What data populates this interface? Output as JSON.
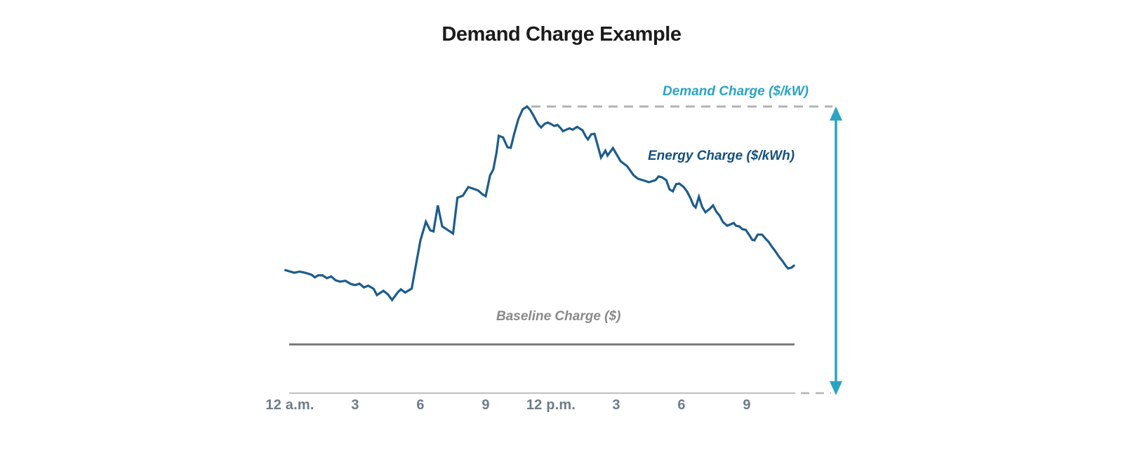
{
  "colors": {
    "title_text": "#1b1b1b",
    "accent_teal": "#2aa4c3",
    "curve_blue": "#1d5c8b",
    "energy_label_blue": "#15507c",
    "baseline_line_gray": "#7b7b7b",
    "baseline_label_gray": "#8a8a8a",
    "dash_gray": "#b3b3b3",
    "axis_gray": "#bfbfbf",
    "tick_text": "#6d7c88"
  },
  "chart_data": {
    "type": "line",
    "title": "Demand Charge Example",
    "x_unit": "hour of day (0 = 12 a.m., 12 = 12 p.m.)",
    "y_unit": "load as % of daily peak",
    "xlim": [
      0,
      23.2
    ],
    "ylim": [
      0,
      105
    ],
    "grid": false,
    "legend": false,
    "x_ticks": [
      {
        "label": "12 a.m.",
        "hour": 0
      },
      {
        "label": "3",
        "hour": 3
      },
      {
        "label": "6",
        "hour": 6
      },
      {
        "label": "9",
        "hour": 9
      },
      {
        "label": "12 p.m.",
        "hour": 12
      },
      {
        "label": "3",
        "hour": 15
      },
      {
        "label": "6",
        "hour": 18
      },
      {
        "label": "9",
        "hour": 21
      }
    ],
    "peak_hour": 10.9,
    "peak_level_pct": 100,
    "baseline_level_pct": 17,
    "annotations": {
      "demand": {
        "text": "Demand Charge ($/kW)",
        "style": "teal, dashed line at peak level with vertical double-headed arrow down to axis"
      },
      "energy": {
        "text": "Energy Charge ($/kWh)",
        "style": "dark blue, labels the load curve"
      },
      "baseline": {
        "text": "Baseline Charge ($)",
        "style": "gray, labels flat horizontal line"
      }
    },
    "series": [
      {
        "name": "load_pct_of_peak",
        "points": [
          [
            -0.25,
            43
          ],
          [
            0.2,
            42
          ],
          [
            0.45,
            42.4
          ],
          [
            0.7,
            42
          ],
          [
            1.0,
            41.3
          ],
          [
            1.15,
            40.4
          ],
          [
            1.3,
            41.1
          ],
          [
            1.5,
            41.1
          ],
          [
            1.7,
            40.1
          ],
          [
            1.9,
            40.7
          ],
          [
            2.1,
            39.4
          ],
          [
            2.3,
            38.9
          ],
          [
            2.55,
            39.2
          ],
          [
            2.8,
            38.1
          ],
          [
            3.0,
            37.7
          ],
          [
            3.2,
            38.2
          ],
          [
            3.4,
            36.9
          ],
          [
            3.6,
            37.5
          ],
          [
            3.85,
            36.4
          ],
          [
            4.0,
            34.2
          ],
          [
            4.3,
            35.7
          ],
          [
            4.5,
            34.5
          ],
          [
            4.7,
            32.5
          ],
          [
            4.95,
            35.1
          ],
          [
            5.1,
            36.2
          ],
          [
            5.3,
            35.1
          ],
          [
            5.6,
            36.5
          ],
          [
            5.8,
            45.0
          ],
          [
            6.0,
            53.3
          ],
          [
            6.25,
            59.8
          ],
          [
            6.45,
            56.8
          ],
          [
            6.6,
            56.4
          ],
          [
            6.8,
            65.5
          ],
          [
            7.0,
            58.2
          ],
          [
            7.2,
            57.2
          ],
          [
            7.5,
            55.7
          ],
          [
            7.7,
            68.2
          ],
          [
            7.95,
            68.9
          ],
          [
            8.2,
            71.9
          ],
          [
            8.4,
            71.4
          ],
          [
            8.65,
            70.7
          ],
          [
            8.85,
            69.4
          ],
          [
            9.0,
            68.7
          ],
          [
            9.2,
            76.0
          ],
          [
            9.35,
            78.0
          ],
          [
            9.5,
            84.0
          ],
          [
            9.6,
            89.8
          ],
          [
            9.8,
            89.2
          ],
          [
            10.0,
            85.8
          ],
          [
            10.15,
            85.6
          ],
          [
            10.3,
            90.2
          ],
          [
            10.5,
            95.6
          ],
          [
            10.7,
            99.0
          ],
          [
            10.9,
            100
          ],
          [
            11.05,
            98.8
          ],
          [
            11.2,
            96.8
          ],
          [
            11.4,
            93.9
          ],
          [
            11.55,
            92.7
          ],
          [
            11.7,
            93.9
          ],
          [
            11.85,
            94.4
          ],
          [
            12.0,
            93.9
          ],
          [
            12.15,
            93.2
          ],
          [
            12.3,
            93.6
          ],
          [
            12.45,
            92.4
          ],
          [
            12.55,
            91.4
          ],
          [
            12.7,
            91.9
          ],
          [
            12.85,
            92.4
          ],
          [
            13.0,
            91.9
          ],
          [
            13.2,
            92.9
          ],
          [
            13.45,
            91.7
          ],
          [
            13.6,
            89.5
          ],
          [
            13.7,
            88.5
          ],
          [
            13.85,
            90.3
          ],
          [
            14.0,
            90.5
          ],
          [
            14.3,
            82.2
          ],
          [
            14.5,
            84.6
          ],
          [
            14.6,
            82.9
          ],
          [
            14.85,
            85.5
          ],
          [
            15.2,
            80.9
          ],
          [
            15.5,
            79.2
          ],
          [
            15.8,
            76.0
          ],
          [
            16.0,
            74.8
          ],
          [
            16.3,
            74.1
          ],
          [
            16.5,
            73.6
          ],
          [
            16.8,
            74.3
          ],
          [
            16.95,
            75.6
          ],
          [
            17.1,
            75.3
          ],
          [
            17.3,
            74.3
          ],
          [
            17.45,
            71.1
          ],
          [
            17.6,
            70.4
          ],
          [
            17.75,
            72.9
          ],
          [
            17.9,
            73.1
          ],
          [
            18.1,
            71.9
          ],
          [
            18.25,
            70.4
          ],
          [
            18.4,
            68.2
          ],
          [
            18.55,
            65.5
          ],
          [
            18.65,
            64.8
          ],
          [
            18.8,
            68.5
          ],
          [
            18.95,
            65.0
          ],
          [
            19.1,
            63.1
          ],
          [
            19.3,
            64.3
          ],
          [
            19.45,
            65.5
          ],
          [
            19.6,
            63.3
          ],
          [
            19.75,
            61.9
          ],
          [
            19.9,
            59.7
          ],
          [
            20.1,
            58.4
          ],
          [
            20.25,
            58.9
          ],
          [
            20.4,
            59.4
          ],
          [
            20.5,
            58.4
          ],
          [
            20.65,
            58.2
          ],
          [
            20.8,
            57.2
          ],
          [
            20.95,
            57.0
          ],
          [
            21.1,
            55.3
          ],
          [
            21.25,
            53.5
          ],
          [
            21.35,
            53.3
          ],
          [
            21.5,
            55.3
          ],
          [
            21.7,
            55.3
          ],
          [
            21.85,
            54.0
          ],
          [
            22.0,
            52.8
          ],
          [
            22.15,
            51.1
          ],
          [
            22.3,
            49.6
          ],
          [
            22.5,
            47.4
          ],
          [
            22.65,
            46.0
          ],
          [
            22.8,
            44.3
          ],
          [
            22.9,
            43.5
          ],
          [
            23.05,
            43.8
          ],
          [
            23.2,
            44.7
          ]
        ]
      }
    ]
  }
}
